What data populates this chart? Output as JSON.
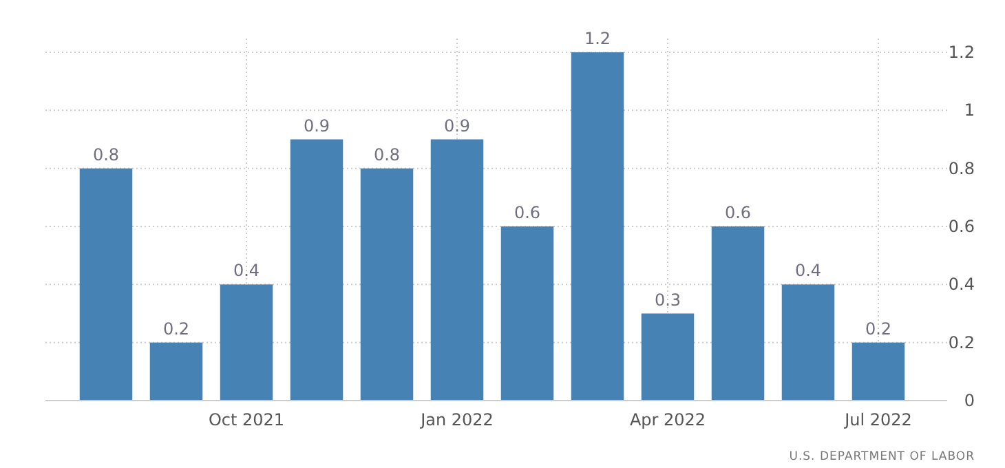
{
  "chart_data": {
    "type": "bar",
    "categories": [
      null,
      null,
      "Oct 2021",
      null,
      null,
      "Jan 2022",
      null,
      null,
      "Apr 2022",
      null,
      null,
      "Jul 2022"
    ],
    "values": [
      0.8,
      0.2,
      0.4,
      0.9,
      0.8,
      0.9,
      0.6,
      1.2,
      0.3,
      0.6,
      0.4,
      0.2
    ],
    "color": "#4682b4",
    "ylim": [
      0,
      1.2
    ],
    "yticks": [
      0,
      0.2,
      0.4,
      0.6,
      0.8,
      1,
      1.2
    ],
    "grid": true,
    "data_labels": true,
    "annotations": [
      "U.S. DEPARTMENT OF LABOR"
    ]
  }
}
